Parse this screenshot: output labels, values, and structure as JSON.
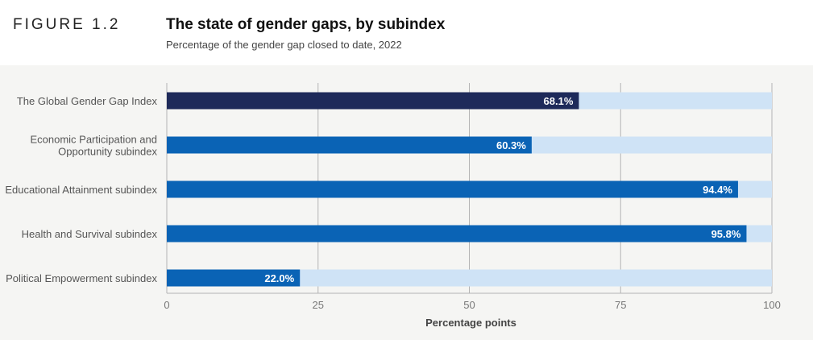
{
  "header": {
    "figure_label": "FIGURE 1.2",
    "title": "The state of gender gaps, by subindex",
    "subtitle": "Percentage of the gender gap closed to date, 2022"
  },
  "colors": {
    "index_bar": "#1e2a5a",
    "subindex_bar": "#0a63b5",
    "remainder": "#cfe3f6",
    "grid": "#b4b4b4"
  },
  "chart_data": {
    "type": "bar",
    "orientation": "horizontal",
    "title": "The state of gender gaps, by subindex",
    "subtitle": "Percentage of the gender gap closed to date, 2022",
    "xlabel": "Percentage points",
    "ylabel": "",
    "xlim": [
      0,
      100
    ],
    "xticks": [
      0,
      25,
      50,
      75,
      100
    ],
    "grid": true,
    "categories": [
      [
        "The Global Gender Gap Index"
      ],
      [
        "Economic Participation and",
        "Opportunity subindex"
      ],
      [
        "Educational Attainment subindex"
      ],
      [
        "Health and Survival subindex"
      ],
      [
        "Political Empowerment subindex"
      ]
    ],
    "values": [
      68.1,
      60.3,
      94.4,
      95.8,
      22.0
    ],
    "value_labels": [
      "68.1%",
      "60.3%",
      "94.4%",
      "95.8%",
      "22.0%"
    ],
    "bar_colors": [
      "#1e2a5a",
      "#0a63b5",
      "#0a63b5",
      "#0a63b5",
      "#0a63b5"
    ],
    "remainder_color": "#cfe3f6"
  }
}
